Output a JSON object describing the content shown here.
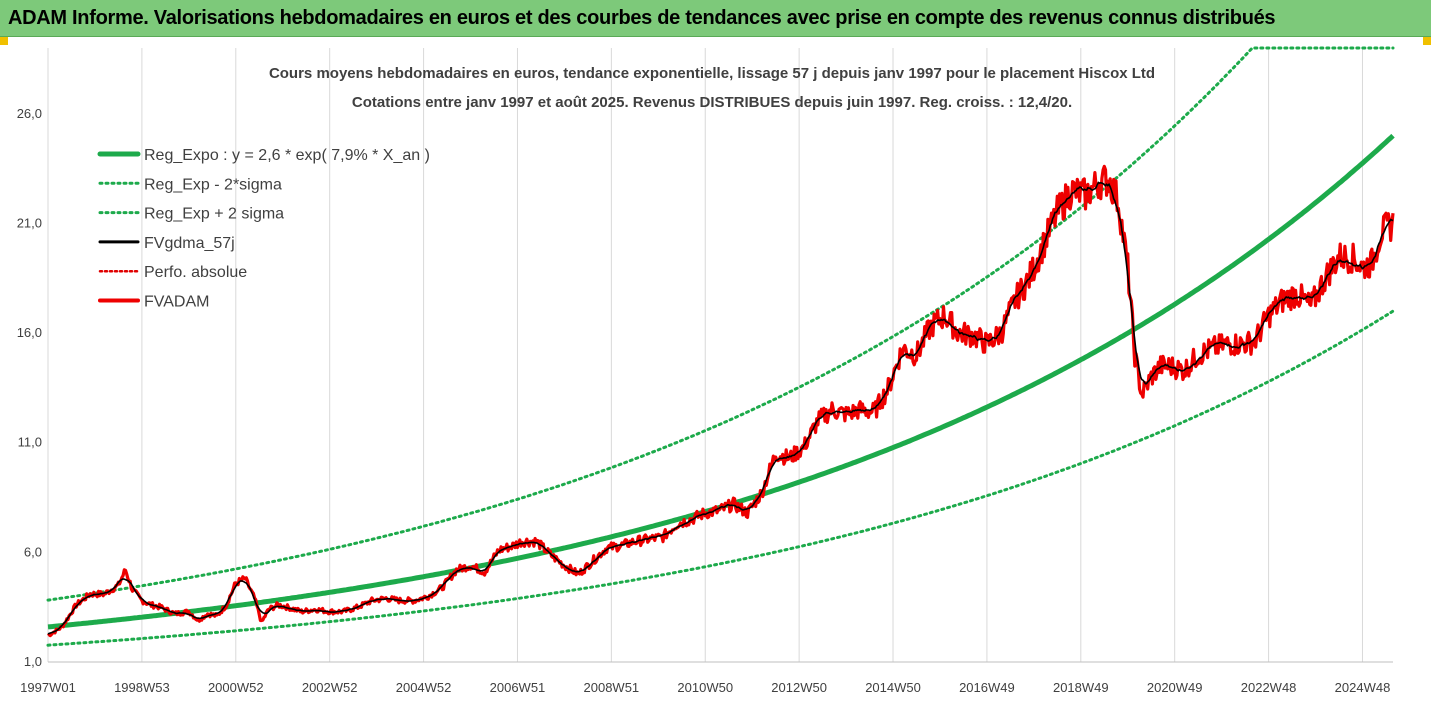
{
  "header": {
    "title": "ADAM Informe. Valorisations hebdomadaires en euros et des courbes de tendances avec prise en compte des revenus connus distribués"
  },
  "chart_data": {
    "type": "line",
    "title": "Cours moyens hebdomadaires en euros, tendance exponentielle, lissage 57 j depuis janv 1997 pour le placement Hiscox Ltd",
    "subtitle": "Cotations entre janv 1997 et août 2025. Revenus DISTRIBUES depuis juin 1997. Reg. croiss. : 12,4/20.",
    "xlabel": "",
    "ylabel": "",
    "ylim": [
      1,
      29
    ],
    "yticks": [
      "1,0",
      "6,0",
      "11,0",
      "16,0",
      "21,0",
      "26,0"
    ],
    "ytick_values": [
      1,
      6,
      11,
      16,
      21,
      26
    ],
    "xticks": [
      "1997W01",
      "1998W53",
      "2000W52",
      "2002W52",
      "2004W52",
      "2006W51",
      "2008W51",
      "2010W50",
      "2012W50",
      "2014W50",
      "2016W49",
      "2018W49",
      "2020W49",
      "2022W48",
      "2024W48"
    ],
    "xtick_years": [
      1997.0,
      1999.0,
      2001.0,
      2003.0,
      2005.0,
      2007.0,
      2009.0,
      2011.0,
      2013.0,
      2015.0,
      2017.0,
      2019.0,
      2021.0,
      2023.0,
      2025.0
    ],
    "xlim": [
      1997.0,
      2025.65
    ],
    "grid": "vertical",
    "legend_position": "top-left",
    "colors": {
      "trend": "#1daa4b",
      "band": "#1daa4b",
      "smoothed": "#000000",
      "perf": "#e00000",
      "price": "#ee0000"
    },
    "series": [
      {
        "name": "Reg_Expo : y = 2,6 * exp( 7,9% *  X_an )",
        "kind": "trend",
        "a": 2.6,
        "rate": 0.079
      },
      {
        "name": "Reg_Exp - 2*sigma",
        "kind": "band-low",
        "factor": 0.68
      },
      {
        "name": "Reg_Exp + 2 sigma",
        "kind": "band-high",
        "factor": 1.47,
        "cap": 29
      },
      {
        "name": "FVgdma_57j",
        "kind": "smoothed"
      },
      {
        "name": "Perfo. absolue",
        "kind": "perf"
      },
      {
        "name": "FVADAM",
        "kind": "price",
        "x": [
          1997.0,
          1997.3,
          1997.6,
          1997.9,
          1998.2,
          1998.5,
          1998.65,
          1998.8,
          1999.0,
          1999.2,
          1999.4,
          1999.7,
          2000.0,
          2000.2,
          2000.4,
          2000.6,
          2000.8,
          2001.0,
          2001.2,
          2001.4,
          2001.55,
          2001.7,
          2001.9,
          2002.1,
          2002.4,
          2002.7,
          2003.0,
          2003.3,
          2003.6,
          2003.9,
          2004.2,
          2004.5,
          2004.8,
          2005.1,
          2005.4,
          2005.7,
          2006.0,
          2006.3,
          2006.6,
          2006.9,
          2007.1,
          2007.4,
          2007.7,
          2008.0,
          2008.3,
          2008.6,
          2008.9,
          2009.2,
          2009.5,
          2009.8,
          2010.1,
          2010.4,
          2010.7,
          2011.0,
          2011.3,
          2011.6,
          2011.9,
          2012.2,
          2012.5,
          2012.8,
          2013.1,
          2013.4,
          2013.7,
          2014.0,
          2014.3,
          2014.6,
          2014.9,
          2015.2,
          2015.5,
          2015.8,
          2016.1,
          2016.4,
          2016.7,
          2017.0,
          2017.3,
          2017.6,
          2017.9,
          2018.2,
          2018.5,
          2018.8,
          2019.1,
          2019.4,
          2019.6,
          2019.8,
          2020.0,
          2020.15,
          2020.3,
          2020.5,
          2020.7,
          2020.9,
          2021.2,
          2021.5,
          2021.8,
          2022.1,
          2022.4,
          2022.7,
          2023.0,
          2023.3,
          2023.6,
          2023.9,
          2024.2,
          2024.5,
          2024.8,
          2025.0,
          2025.2,
          2025.4,
          2025.65
        ],
        "y": [
          2.2,
          2.6,
          3.6,
          4.1,
          4.1,
          4.5,
          5.2,
          4.3,
          3.8,
          3.6,
          3.5,
          3.2,
          3.3,
          2.9,
          3.2,
          3.1,
          3.6,
          4.6,
          4.8,
          3.9,
          2.8,
          3.4,
          3.6,
          3.5,
          3.3,
          3.4,
          3.3,
          3.3,
          3.5,
          3.8,
          3.9,
          3.8,
          3.8,
          4.0,
          4.4,
          5.2,
          5.4,
          5.1,
          6.1,
          6.3,
          6.5,
          6.5,
          5.9,
          5.4,
          5.0,
          5.6,
          6.2,
          6.3,
          6.5,
          6.6,
          6.7,
          7.3,
          7.5,
          7.8,
          7.9,
          8.2,
          7.8,
          8.7,
          10.5,
          10.3,
          10.8,
          12.0,
          12.5,
          12.3,
          12.5,
          12.4,
          13.5,
          15.3,
          15.0,
          16.3,
          16.8,
          16.0,
          15.9,
          15.5,
          16.0,
          17.5,
          18.5,
          20.0,
          21.5,
          22.5,
          22.3,
          22.9,
          23.0,
          22.0,
          19.0,
          15.0,
          13.2,
          14.0,
          14.5,
          14.5,
          14.3,
          15.0,
          15.3,
          15.5,
          15.5,
          15.6,
          16.8,
          17.5,
          17.8,
          17.2,
          18.5,
          19.5,
          19.4,
          19.0,
          19.2,
          20.6,
          21.0
        ]
      }
    ]
  }
}
